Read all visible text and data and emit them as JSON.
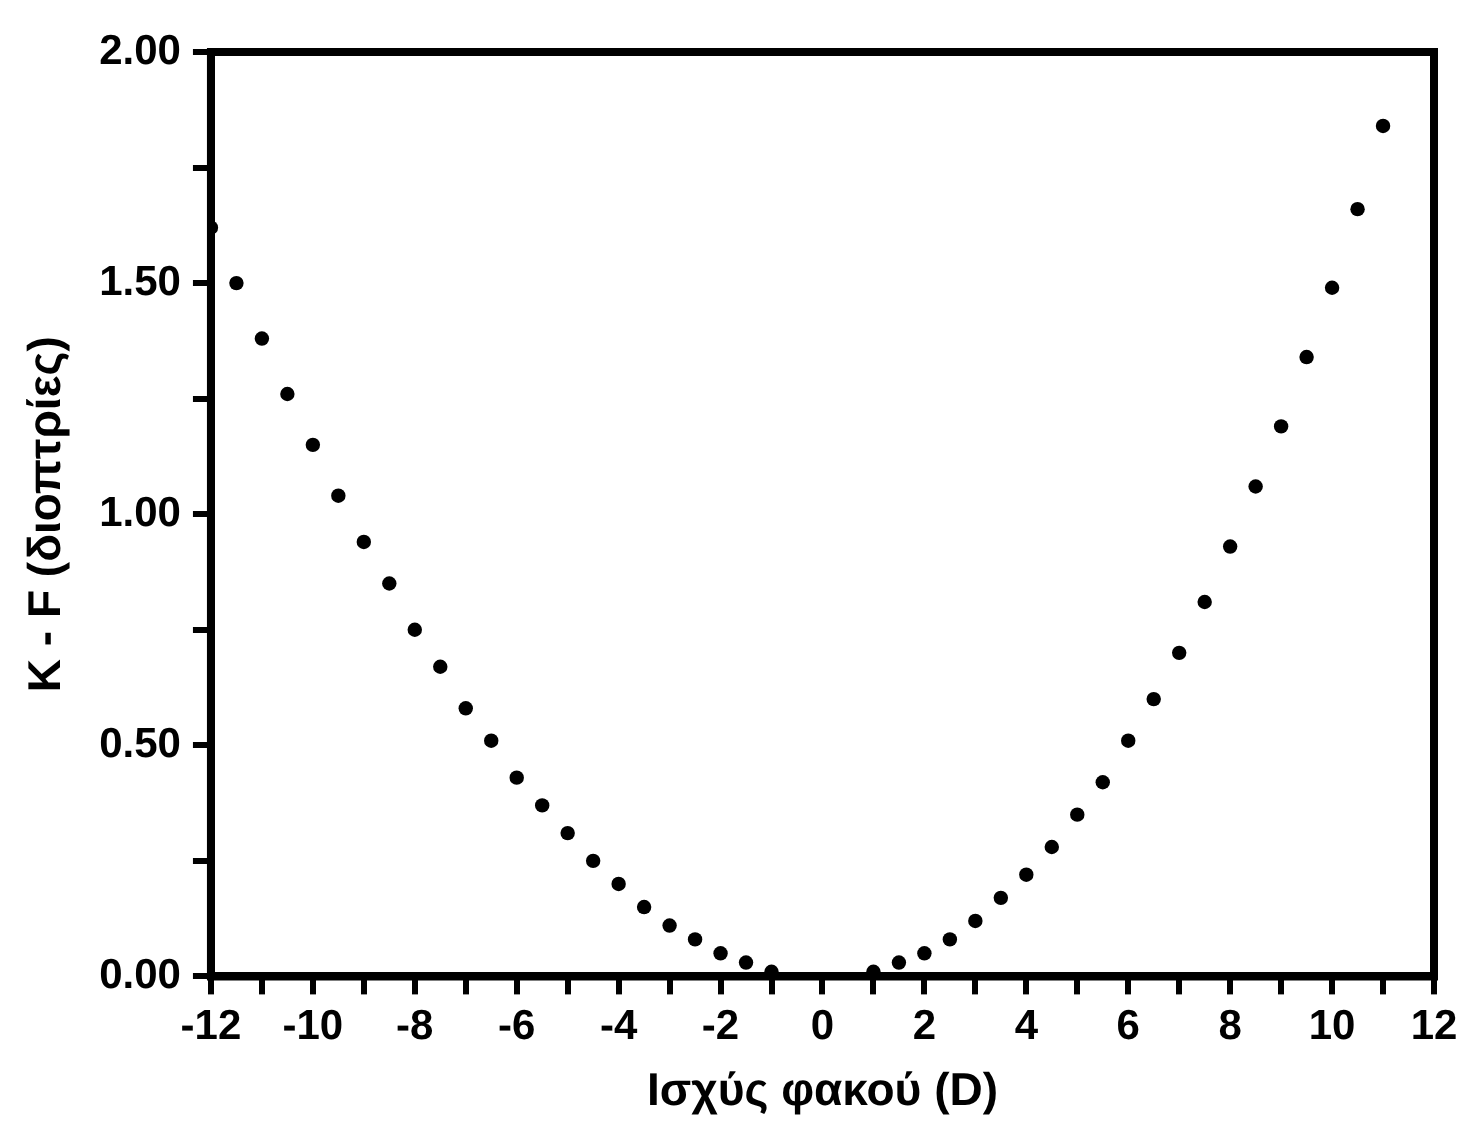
{
  "chart_data": {
    "type": "scatter",
    "xlabel": "Ισχύς φακού (D)",
    "ylabel": "K - F (διοπτρίες)",
    "x": [
      -12,
      -11.5,
      -11,
      -10.5,
      -10,
      -9.5,
      -9,
      -8.5,
      -8,
      -7.5,
      -7,
      -6.5,
      -6,
      -5.5,
      -5,
      -4.5,
      -4,
      -3.5,
      -3,
      -2.5,
      -2,
      -1.5,
      -1,
      1,
      1.5,
      2,
      2.5,
      3,
      3.5,
      4,
      4.5,
      5,
      5.5,
      6,
      6.5,
      7,
      7.5,
      8,
      8.5,
      9,
      9.5,
      10,
      10.5,
      11
    ],
    "series": [
      {
        "color": "#000000",
        "values": [
          1.62,
          1.5,
          1.38,
          1.26,
          1.15,
          1.04,
          0.94,
          0.85,
          0.75,
          0.67,
          0.58,
          0.51,
          0.43,
          0.37,
          0.31,
          0.25,
          0.2,
          0.15,
          0.11,
          0.08,
          0.05,
          0.03,
          0.01,
          0.01,
          0.03,
          0.05,
          0.08,
          0.12,
          0.17,
          0.22,
          0.28,
          0.35,
          0.42,
          0.51,
          0.6,
          0.7,
          0.81,
          0.93,
          1.06,
          1.19,
          1.34,
          1.49,
          1.66,
          1.84
        ]
      }
    ],
    "xlim": [
      -12,
      12
    ],
    "xticks": [
      -12,
      {
        "value": -11,
        "label": null
      },
      -10,
      {
        "value": -9,
        "label": null
      },
      -8,
      {
        "value": -7,
        "label": null
      },
      -6,
      {
        "value": -5,
        "label": null
      },
      -4,
      {
        "value": -3,
        "label": null
      },
      -2,
      {
        "value": -1,
        "label": null
      },
      0,
      {
        "value": 1,
        "label": null
      },
      2,
      {
        "value": 3,
        "label": null
      },
      4,
      {
        "value": 5,
        "label": null
      },
      6,
      {
        "value": 7,
        "label": null
      },
      8,
      {
        "value": 9,
        "label": null
      },
      10,
      {
        "value": 11,
        "label": null
      },
      12
    ],
    "ylim": [
      0,
      2
    ],
    "yticks": [
      {
        "value": 0,
        "label": "0.00"
      },
      {
        "value": 0.25,
        "label": null
      },
      {
        "value": 0.5,
        "label": "0.50"
      },
      {
        "value": 0.75,
        "label": null
      },
      {
        "value": 1,
        "label": "1.00"
      },
      {
        "value": 1.25,
        "label": null
      },
      {
        "value": 1.5,
        "label": "1.50"
      },
      {
        "value": 1.75,
        "label": null
      },
      {
        "value": 2,
        "label": "2.00"
      }
    ],
    "grid": false,
    "legend": false,
    "marker": "circle"
  }
}
